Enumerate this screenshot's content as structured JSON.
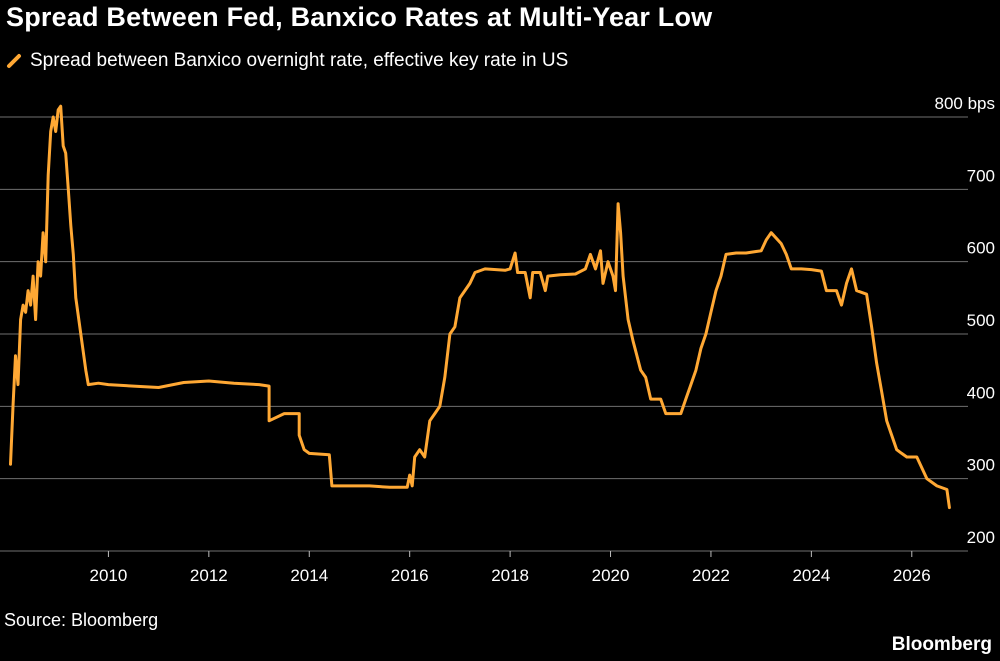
{
  "chart_data": {
    "type": "line",
    "title": "Spread Between Fed, Banxico Rates at Multi-Year Low",
    "source": "Source: Bloomberg",
    "brand": "Bloomberg",
    "ylim": [
      200,
      800
    ],
    "y_ticks": [
      {
        "value": 800,
        "label": "800 bps"
      },
      {
        "value": 700,
        "label": "700"
      },
      {
        "value": 600,
        "label": "600"
      },
      {
        "value": 500,
        "label": "500"
      },
      {
        "value": 400,
        "label": "400"
      },
      {
        "value": 300,
        "label": "300"
      },
      {
        "value": 200,
        "label": "200"
      }
    ],
    "xlim": [
      2008.0,
      2027.0
    ],
    "x_ticks": [
      {
        "value": 2010,
        "label": "2010"
      },
      {
        "value": 2012,
        "label": "2012"
      },
      {
        "value": 2014,
        "label": "2014"
      },
      {
        "value": 2016,
        "label": "2016"
      },
      {
        "value": 2018,
        "label": "2018"
      },
      {
        "value": 2020,
        "label": "2020"
      },
      {
        "value": 2022,
        "label": "2022"
      },
      {
        "value": 2024,
        "label": "2024"
      },
      {
        "value": 2026,
        "label": "2026"
      }
    ],
    "grid": true,
    "legend": "top-left",
    "series": [
      {
        "name": "Spread between Banxico overnight rate, effective key rate in US",
        "color": "#ffa834",
        "points": [
          [
            2008.05,
            320
          ],
          [
            2008.1,
            400
          ],
          [
            2008.15,
            470
          ],
          [
            2008.2,
            430
          ],
          [
            2008.25,
            520
          ],
          [
            2008.3,
            540
          ],
          [
            2008.35,
            530
          ],
          [
            2008.4,
            560
          ],
          [
            2008.45,
            540
          ],
          [
            2008.5,
            580
          ],
          [
            2008.55,
            520
          ],
          [
            2008.6,
            600
          ],
          [
            2008.65,
            580
          ],
          [
            2008.7,
            640
          ],
          [
            2008.75,
            600
          ],
          [
            2008.8,
            720
          ],
          [
            2008.85,
            780
          ],
          [
            2008.9,
            800
          ],
          [
            2008.95,
            780
          ],
          [
            2009.0,
            810
          ],
          [
            2009.05,
            815
          ],
          [
            2009.1,
            760
          ],
          [
            2009.15,
            750
          ],
          [
            2009.2,
            700
          ],
          [
            2009.25,
            650
          ],
          [
            2009.3,
            610
          ],
          [
            2009.35,
            550
          ],
          [
            2009.45,
            500
          ],
          [
            2009.55,
            450
          ],
          [
            2009.6,
            430
          ],
          [
            2009.8,
            432
          ],
          [
            2010.0,
            430
          ],
          [
            2010.5,
            428
          ],
          [
            2011.0,
            426
          ],
          [
            2011.5,
            433
          ],
          [
            2012.0,
            435
          ],
          [
            2012.5,
            432
          ],
          [
            2013.0,
            430
          ],
          [
            2013.2,
            428
          ],
          [
            2013.2,
            380
          ],
          [
            2013.5,
            390
          ],
          [
            2013.8,
            390
          ],
          [
            2013.8,
            360
          ],
          [
            2013.9,
            340
          ],
          [
            2014.0,
            335
          ],
          [
            2014.4,
            333
          ],
          [
            2014.45,
            290
          ],
          [
            2014.8,
            290
          ],
          [
            2015.2,
            290
          ],
          [
            2015.6,
            288
          ],
          [
            2015.95,
            288
          ],
          [
            2016.0,
            305
          ],
          [
            2016.05,
            290
          ],
          [
            2016.1,
            330
          ],
          [
            2016.2,
            340
          ],
          [
            2016.3,
            330
          ],
          [
            2016.4,
            380
          ],
          [
            2016.5,
            390
          ],
          [
            2016.6,
            400
          ],
          [
            2016.7,
            440
          ],
          [
            2016.8,
            500
          ],
          [
            2016.9,
            510
          ],
          [
            2017.0,
            550
          ],
          [
            2017.1,
            560
          ],
          [
            2017.2,
            570
          ],
          [
            2017.3,
            585
          ],
          [
            2017.5,
            590
          ],
          [
            2017.9,
            588
          ],
          [
            2018.0,
            590
          ],
          [
            2018.1,
            612
          ],
          [
            2018.15,
            585
          ],
          [
            2018.3,
            585
          ],
          [
            2018.4,
            550
          ],
          [
            2018.45,
            585
          ],
          [
            2018.6,
            585
          ],
          [
            2018.7,
            560
          ],
          [
            2018.75,
            580
          ],
          [
            2019.0,
            582
          ],
          [
            2019.3,
            583
          ],
          [
            2019.5,
            590
          ],
          [
            2019.6,
            610
          ],
          [
            2019.7,
            590
          ],
          [
            2019.8,
            615
          ],
          [
            2019.85,
            570
          ],
          [
            2019.95,
            600
          ],
          [
            2020.05,
            580
          ],
          [
            2020.1,
            560
          ],
          [
            2020.15,
            680
          ],
          [
            2020.2,
            640
          ],
          [
            2020.25,
            580
          ],
          [
            2020.35,
            520
          ],
          [
            2020.45,
            490
          ],
          [
            2020.6,
            450
          ],
          [
            2020.7,
            440
          ],
          [
            2020.8,
            410
          ],
          [
            2021.0,
            410
          ],
          [
            2021.1,
            390
          ],
          [
            2021.4,
            390
          ],
          [
            2021.5,
            410
          ],
          [
            2021.6,
            430
          ],
          [
            2021.7,
            450
          ],
          [
            2021.8,
            480
          ],
          [
            2021.9,
            500
          ],
          [
            2022.0,
            530
          ],
          [
            2022.1,
            560
          ],
          [
            2022.2,
            580
          ],
          [
            2022.3,
            610
          ],
          [
            2022.5,
            612
          ],
          [
            2022.7,
            612
          ],
          [
            2022.9,
            614
          ],
          [
            2023.0,
            615
          ],
          [
            2023.1,
            630
          ],
          [
            2023.2,
            640
          ],
          [
            2023.4,
            625
          ],
          [
            2023.5,
            610
          ],
          [
            2023.6,
            590
          ],
          [
            2023.8,
            590
          ],
          [
            2024.0,
            589
          ],
          [
            2024.2,
            587
          ],
          [
            2024.3,
            560
          ],
          [
            2024.5,
            560
          ],
          [
            2024.6,
            540
          ],
          [
            2024.7,
            570
          ],
          [
            2024.8,
            590
          ],
          [
            2024.9,
            560
          ],
          [
            2025.1,
            555
          ],
          [
            2025.2,
            510
          ],
          [
            2025.3,
            460
          ],
          [
            2025.4,
            420
          ],
          [
            2025.5,
            380
          ],
          [
            2025.6,
            360
          ],
          [
            2025.7,
            340
          ],
          [
            2025.8,
            335
          ],
          [
            2025.9,
            330
          ],
          [
            2026.1,
            330
          ],
          [
            2026.3,
            300
          ],
          [
            2026.5,
            290
          ],
          [
            2026.7,
            285
          ],
          [
            2026.75,
            260
          ]
        ]
      }
    ]
  }
}
